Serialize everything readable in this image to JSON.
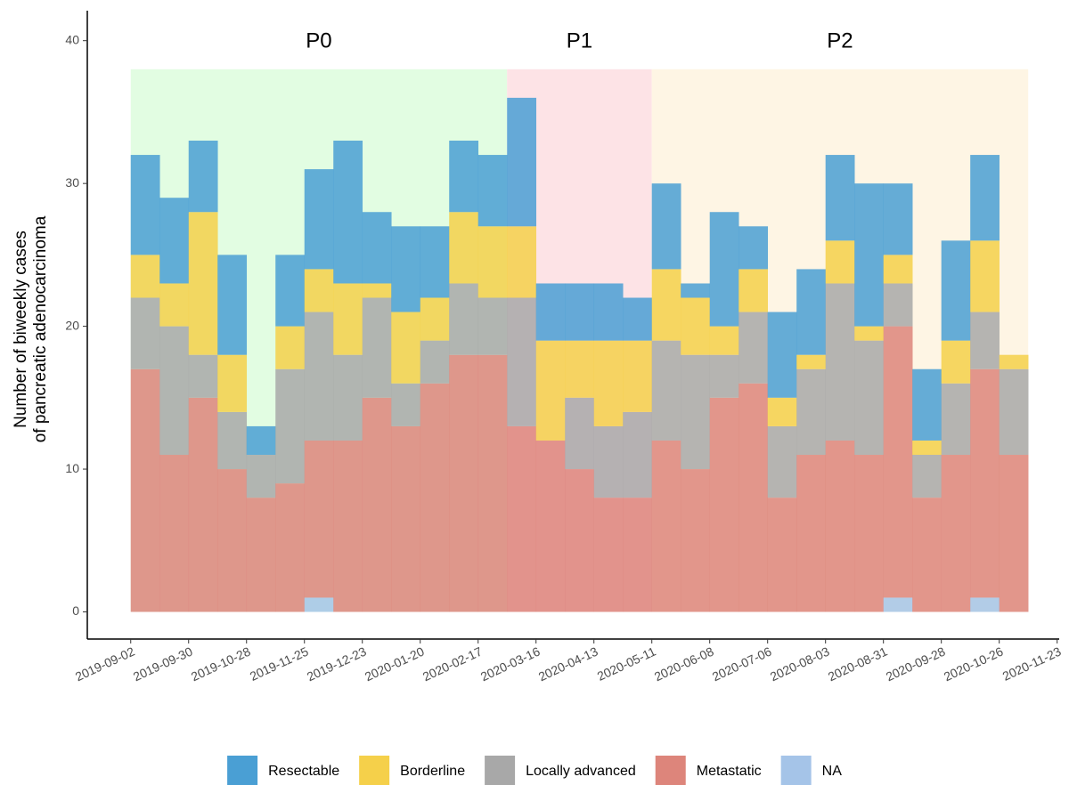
{
  "chart_data": {
    "type": "stacked-histogram",
    "ylabel": [
      "Number of biweekly cases",
      "of pancreatic adenocarcinoma"
    ],
    "bins": [
      "2019-09-02",
      "2019-09-16",
      "2019-09-30",
      "2019-10-14",
      "2019-10-28",
      "2019-11-11",
      "2019-11-25",
      "2019-12-09",
      "2019-12-23",
      "2020-01-06",
      "2020-01-20",
      "2020-02-03",
      "2020-02-17",
      "2020-03-02",
      "2020-03-16",
      "2020-03-30",
      "2020-04-13",
      "2020-04-27",
      "2020-05-11",
      "2020-05-25",
      "2020-06-08",
      "2020-06-22",
      "2020-07-06",
      "2020-07-20",
      "2020-08-03",
      "2020-08-17",
      "2020-08-31",
      "2020-09-14",
      "2020-09-28",
      "2020-10-12",
      "2020-10-26",
      "2020-11-09"
    ],
    "series": [
      {
        "name": "Resectable",
        "color": "#4a9fd4",
        "values": [
          7,
          6,
          5,
          7,
          2,
          5,
          7,
          10,
          5,
          6,
          5,
          5,
          5,
          9,
          4,
          4,
          4,
          3,
          6,
          1,
          8,
          3,
          6,
          6,
          6,
          10,
          5,
          5,
          7,
          6,
          0
        ]
      },
      {
        "name": "Borderline",
        "color": "#f5d04a",
        "values": [
          3,
          3,
          10,
          4,
          0,
          3,
          3,
          5,
          1,
          5,
          3,
          5,
          5,
          5,
          7,
          4,
          6,
          5,
          5,
          4,
          2,
          3,
          2,
          1,
          3,
          1,
          2,
          1,
          3,
          5,
          1
        ]
      },
      {
        "name": "Locally advanced",
        "color": "#a8a8a8",
        "values": [
          5,
          9,
          3,
          4,
          3,
          8,
          9,
          6,
          7,
          3,
          3,
          5,
          4,
          9,
          0,
          5,
          5,
          6,
          7,
          8,
          3,
          5,
          5,
          6,
          11,
          8,
          3,
          3,
          5,
          4,
          6
        ]
      },
      {
        "name": "Metastatic",
        "color": "#dd857b",
        "values": [
          17,
          11,
          15,
          10,
          8,
          9,
          11,
          12,
          15,
          13,
          16,
          18,
          18,
          13,
          12,
          10,
          8,
          8,
          12,
          10,
          15,
          16,
          8,
          11,
          12,
          11,
          19,
          8,
          11,
          16,
          11
        ]
      },
      {
        "name": "NA",
        "color": "#a5c4e8",
        "values": [
          0,
          0,
          0,
          0,
          0,
          0,
          1,
          0,
          0,
          0,
          0,
          0,
          0,
          0,
          0,
          0,
          0,
          0,
          0,
          0,
          0,
          0,
          0,
          0,
          0,
          0,
          1,
          0,
          0,
          1,
          0
        ]
      }
    ],
    "periods": [
      {
        "label": "P0",
        "start": "2019-09-02",
        "end": "2020-03-02",
        "height": 38,
        "color": "#e2fde2"
      },
      {
        "label": "P1",
        "start": "2020-03-02",
        "end": "2020-05-11",
        "height": 38,
        "color": "#fde3e6"
      },
      {
        "label": "P2",
        "start": "2020-05-11",
        "end": "2020-11-09",
        "height": 38,
        "color": "#fef5e4"
      }
    ],
    "xlim": [
      "2019-08-12",
      "2020-11-24"
    ],
    "xticks": [
      "2019-09-02",
      "2019-09-30",
      "2019-10-28",
      "2019-11-25",
      "2019-12-23",
      "2020-01-20",
      "2020-02-17",
      "2020-03-16",
      "2020-04-13",
      "2020-05-11",
      "2020-06-08",
      "2020-07-06",
      "2020-08-03",
      "2020-08-31",
      "2020-09-28",
      "2020-10-26",
      "2020-11-23"
    ],
    "ylim": [
      -1.9,
      42.1
    ],
    "yticks": [
      0,
      10,
      20,
      30,
      40
    ],
    "legend": "bottom"
  }
}
